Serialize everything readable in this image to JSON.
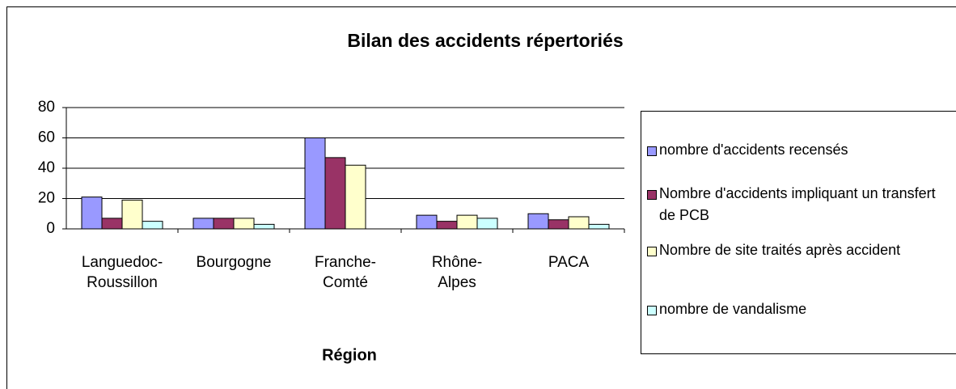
{
  "chart_data": {
    "type": "bar",
    "title": "Bilan des accidents répertoriés",
    "x_label": "Région",
    "categories": [
      "Languedoc-Roussillon",
      "Bourgogne",
      "Franche-Comté",
      "Rhône-Alpes",
      "PACA"
    ],
    "series": [
      {
        "name": "nombre d'accidents recensés",
        "color": "#9999ff",
        "values": [
          21,
          7,
          60,
          9,
          10
        ]
      },
      {
        "name": "Nombre d'accidents impliquant un transfert de PCB",
        "color": "#993366",
        "values": [
          7,
          7,
          47,
          5,
          6
        ]
      },
      {
        "name": "Nombre de site traités après accident",
        "color": "#ffffcc",
        "values": [
          19,
          7,
          42,
          9,
          8
        ]
      },
      {
        "name": "nombre de vandalisme",
        "color": "#ccffff",
        "values": [
          5,
          3,
          null,
          7,
          3
        ]
      }
    ],
    "ylim": [
      0,
      80
    ],
    "yticks": [
      0,
      20,
      40,
      60,
      80
    ],
    "grid": true,
    "legend": "right"
  }
}
